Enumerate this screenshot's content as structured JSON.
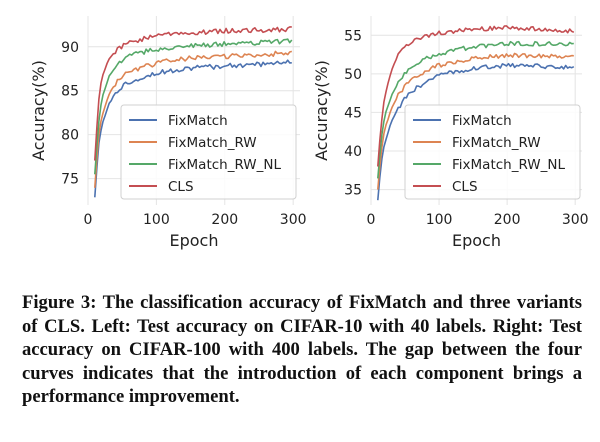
{
  "caption": "Figure 3: The classification accuracy of FixMatch and three variants of CLS. Left: Test accuracy on CIFAR-10 with 40 la­bels. Right: Test accuracy on CIFAR-100 with 400 labels. The gap between the four curves indicates that the introduction of each component brings a performance improvement.",
  "colors": {
    "FixMatch": "#4c72b0",
    "FixMatch_RW": "#dd8452",
    "FixMatch_RW_NL": "#55a868",
    "CLS": "#c44e52",
    "plot_background": "#ffffff",
    "grid": "#e4e4e4"
  },
  "chart_data": [
    {
      "type": "line",
      "xlabel": "Epoch",
      "ylabel": "Accuracy(%)",
      "xlim": [
        0,
        310
      ],
      "ylim": [
        72,
        93.5
      ],
      "xticks": [
        0,
        100,
        200,
        300
      ],
      "yticks": [
        75,
        80,
        85,
        90
      ],
      "grid": true,
      "legend_position": "lower-right",
      "series": [
        {
          "name": "FixMatch",
          "x": [
            10,
            15,
            20,
            30,
            40,
            50,
            60,
            80,
            100,
            120,
            150,
            200,
            250,
            300
          ],
          "y": [
            72.8,
            78.5,
            81.0,
            83.4,
            84.7,
            85.5,
            86.0,
            86.6,
            87.0,
            87.3,
            87.6,
            87.8,
            88.0,
            88.3
          ]
        },
        {
          "name": "FixMatch_RW",
          "x": [
            10,
            15,
            20,
            30,
            40,
            50,
            60,
            80,
            100,
            120,
            150,
            200,
            250,
            300
          ],
          "y": [
            74.0,
            79.5,
            82.0,
            84.5,
            85.8,
            86.6,
            87.1,
            87.7,
            88.1,
            88.4,
            88.7,
            88.9,
            89.1,
            89.3
          ]
        },
        {
          "name": "FixMatch_RW_NL",
          "x": [
            10,
            15,
            20,
            30,
            40,
            50,
            60,
            80,
            100,
            120,
            150,
            200,
            250,
            300
          ],
          "y": [
            75.5,
            81.0,
            84.0,
            86.5,
            87.7,
            88.4,
            88.9,
            89.4,
            89.7,
            89.9,
            90.1,
            90.3,
            90.5,
            90.7
          ]
        },
        {
          "name": "CLS",
          "x": [
            10,
            15,
            20,
            30,
            40,
            50,
            60,
            80,
            100,
            120,
            150,
            200,
            250,
            300
          ],
          "y": [
            77.0,
            83.5,
            86.5,
            88.5,
            89.5,
            90.1,
            90.5,
            90.9,
            91.2,
            91.4,
            91.6,
            91.8,
            91.9,
            92.0
          ]
        }
      ]
    },
    {
      "type": "line",
      "xlabel": "Epoch",
      "ylabel": "Accuracy(%)",
      "xlim": [
        0,
        310
      ],
      "ylim": [
        33,
        57.5
      ],
      "xticks": [
        0,
        100,
        200,
        300
      ],
      "yticks": [
        35,
        40,
        45,
        50,
        55
      ],
      "grid": true,
      "legend_position": "lower-right",
      "series": [
        {
          "name": "FixMatch",
          "x": [
            10,
            15,
            20,
            30,
            40,
            50,
            60,
            80,
            100,
            130,
            160,
            200,
            250,
            300
          ],
          "y": [
            33.7,
            38.5,
            41.0,
            43.8,
            45.5,
            46.8,
            47.7,
            49.0,
            49.8,
            50.4,
            50.8,
            51.1,
            51.0,
            50.8
          ]
        },
        {
          "name": "FixMatch_RW",
          "x": [
            10,
            15,
            20,
            30,
            40,
            50,
            60,
            80,
            100,
            130,
            160,
            200,
            250,
            300
          ],
          "y": [
            35.0,
            40.0,
            42.8,
            45.5,
            47.2,
            48.4,
            49.3,
            50.4,
            51.1,
            51.7,
            52.1,
            52.4,
            52.3,
            52.1
          ]
        },
        {
          "name": "FixMatch_RW_NL",
          "x": [
            10,
            15,
            20,
            30,
            40,
            50,
            60,
            80,
            100,
            130,
            160,
            200,
            250,
            300
          ],
          "y": [
            36.5,
            41.5,
            44.5,
            47.2,
            48.8,
            50.0,
            50.9,
            51.9,
            52.6,
            53.2,
            53.6,
            53.9,
            53.9,
            53.8
          ]
        },
        {
          "name": "CLS",
          "x": [
            10,
            15,
            20,
            30,
            40,
            50,
            60,
            80,
            100,
            130,
            160,
            200,
            250,
            300
          ],
          "y": [
            38.0,
            43.5,
            47.0,
            50.5,
            52.4,
            53.5,
            54.2,
            54.9,
            55.3,
            55.6,
            55.8,
            56.0,
            55.8,
            55.5
          ]
        }
      ]
    }
  ]
}
